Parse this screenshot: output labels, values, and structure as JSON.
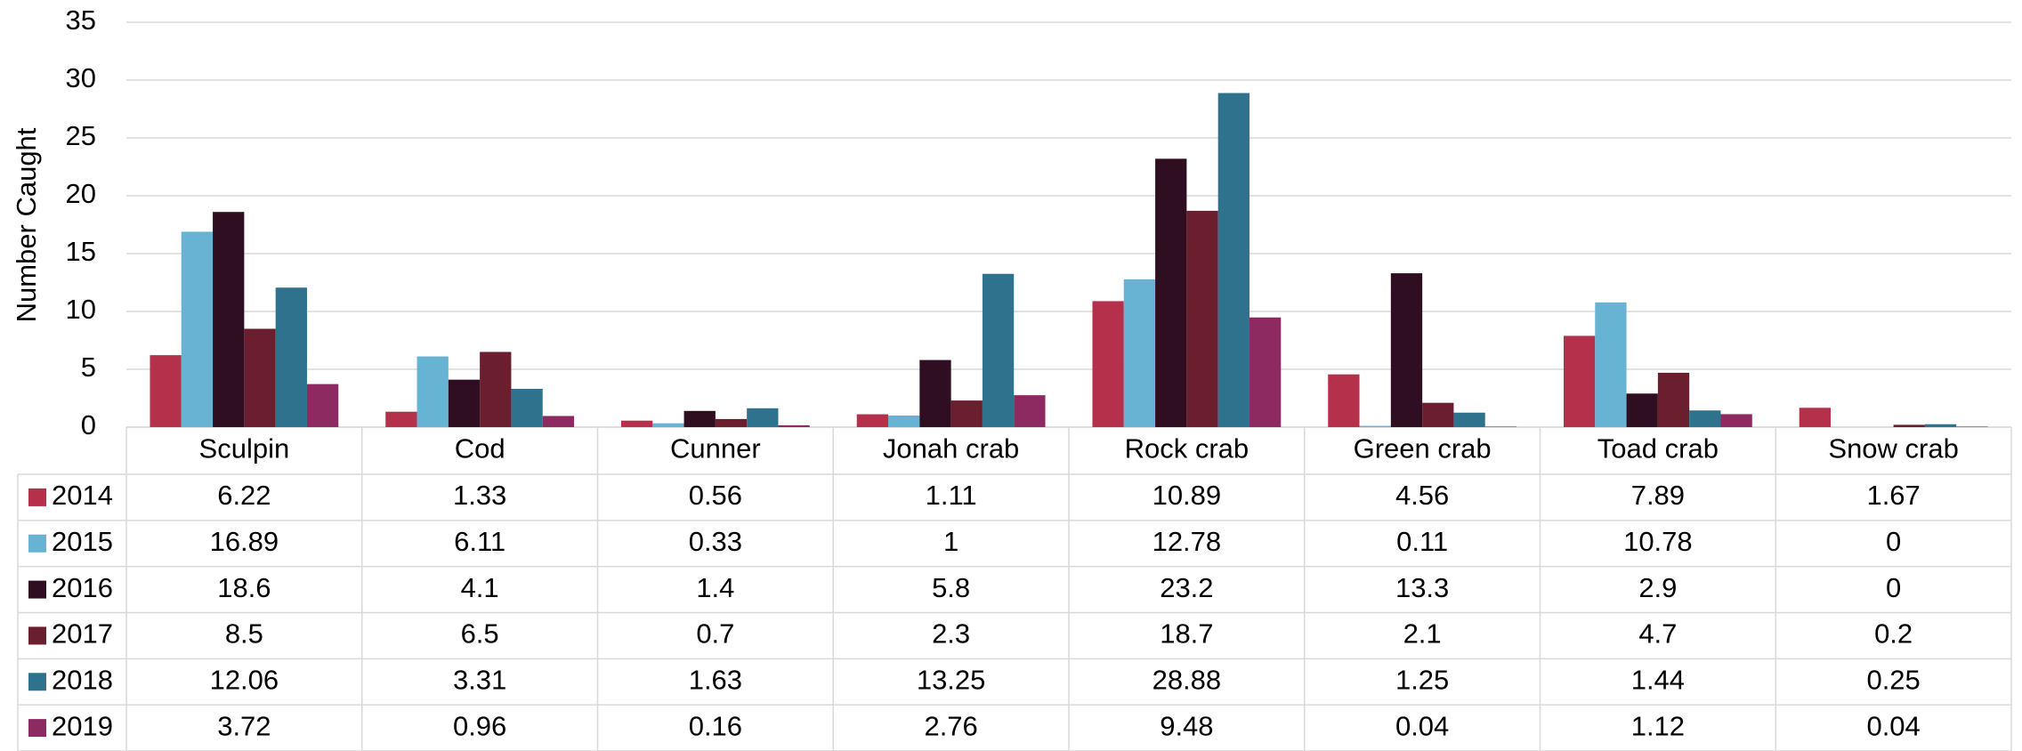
{
  "chart_data": {
    "type": "bar",
    "y_label": "Number Caught",
    "categories": [
      "Sculpin",
      "Cod",
      "Cunner",
      "Jonah crab",
      "Rock crab",
      "Green crab",
      "Toad crab",
      "Snow crab"
    ],
    "series": [
      {
        "name": "2014",
        "color": "#b5304a",
        "values": [
          6.22,
          1.33,
          0.56,
          1.11,
          10.89,
          4.56,
          7.89,
          1.67
        ]
      },
      {
        "name": "2015",
        "color": "#67b3d3",
        "values": [
          16.89,
          6.11,
          0.33,
          1,
          12.78,
          0.11,
          10.78,
          0
        ]
      },
      {
        "name": "2016",
        "color": "#2e0e20",
        "values": [
          18.6,
          4.1,
          1.4,
          5.8,
          23.2,
          13.3,
          2.9,
          0
        ]
      },
      {
        "name": "2017",
        "color": "#6b1f2e",
        "values": [
          8.5,
          6.5,
          0.7,
          2.3,
          18.7,
          2.1,
          4.7,
          0.2
        ]
      },
      {
        "name": "2018",
        "color": "#2e728e",
        "values": [
          12.06,
          3.31,
          1.63,
          13.25,
          28.88,
          1.25,
          1.44,
          0.25
        ]
      },
      {
        "name": "2019",
        "color": "#8e2a62",
        "values": [
          3.72,
          0.96,
          0.16,
          2.76,
          9.48,
          0.04,
          1.12,
          0.04
        ]
      }
    ],
    "ylim": [
      0,
      35
    ],
    "yticks": [
      0,
      5,
      10,
      15,
      20,
      25,
      30,
      35
    ],
    "grid": true
  }
}
